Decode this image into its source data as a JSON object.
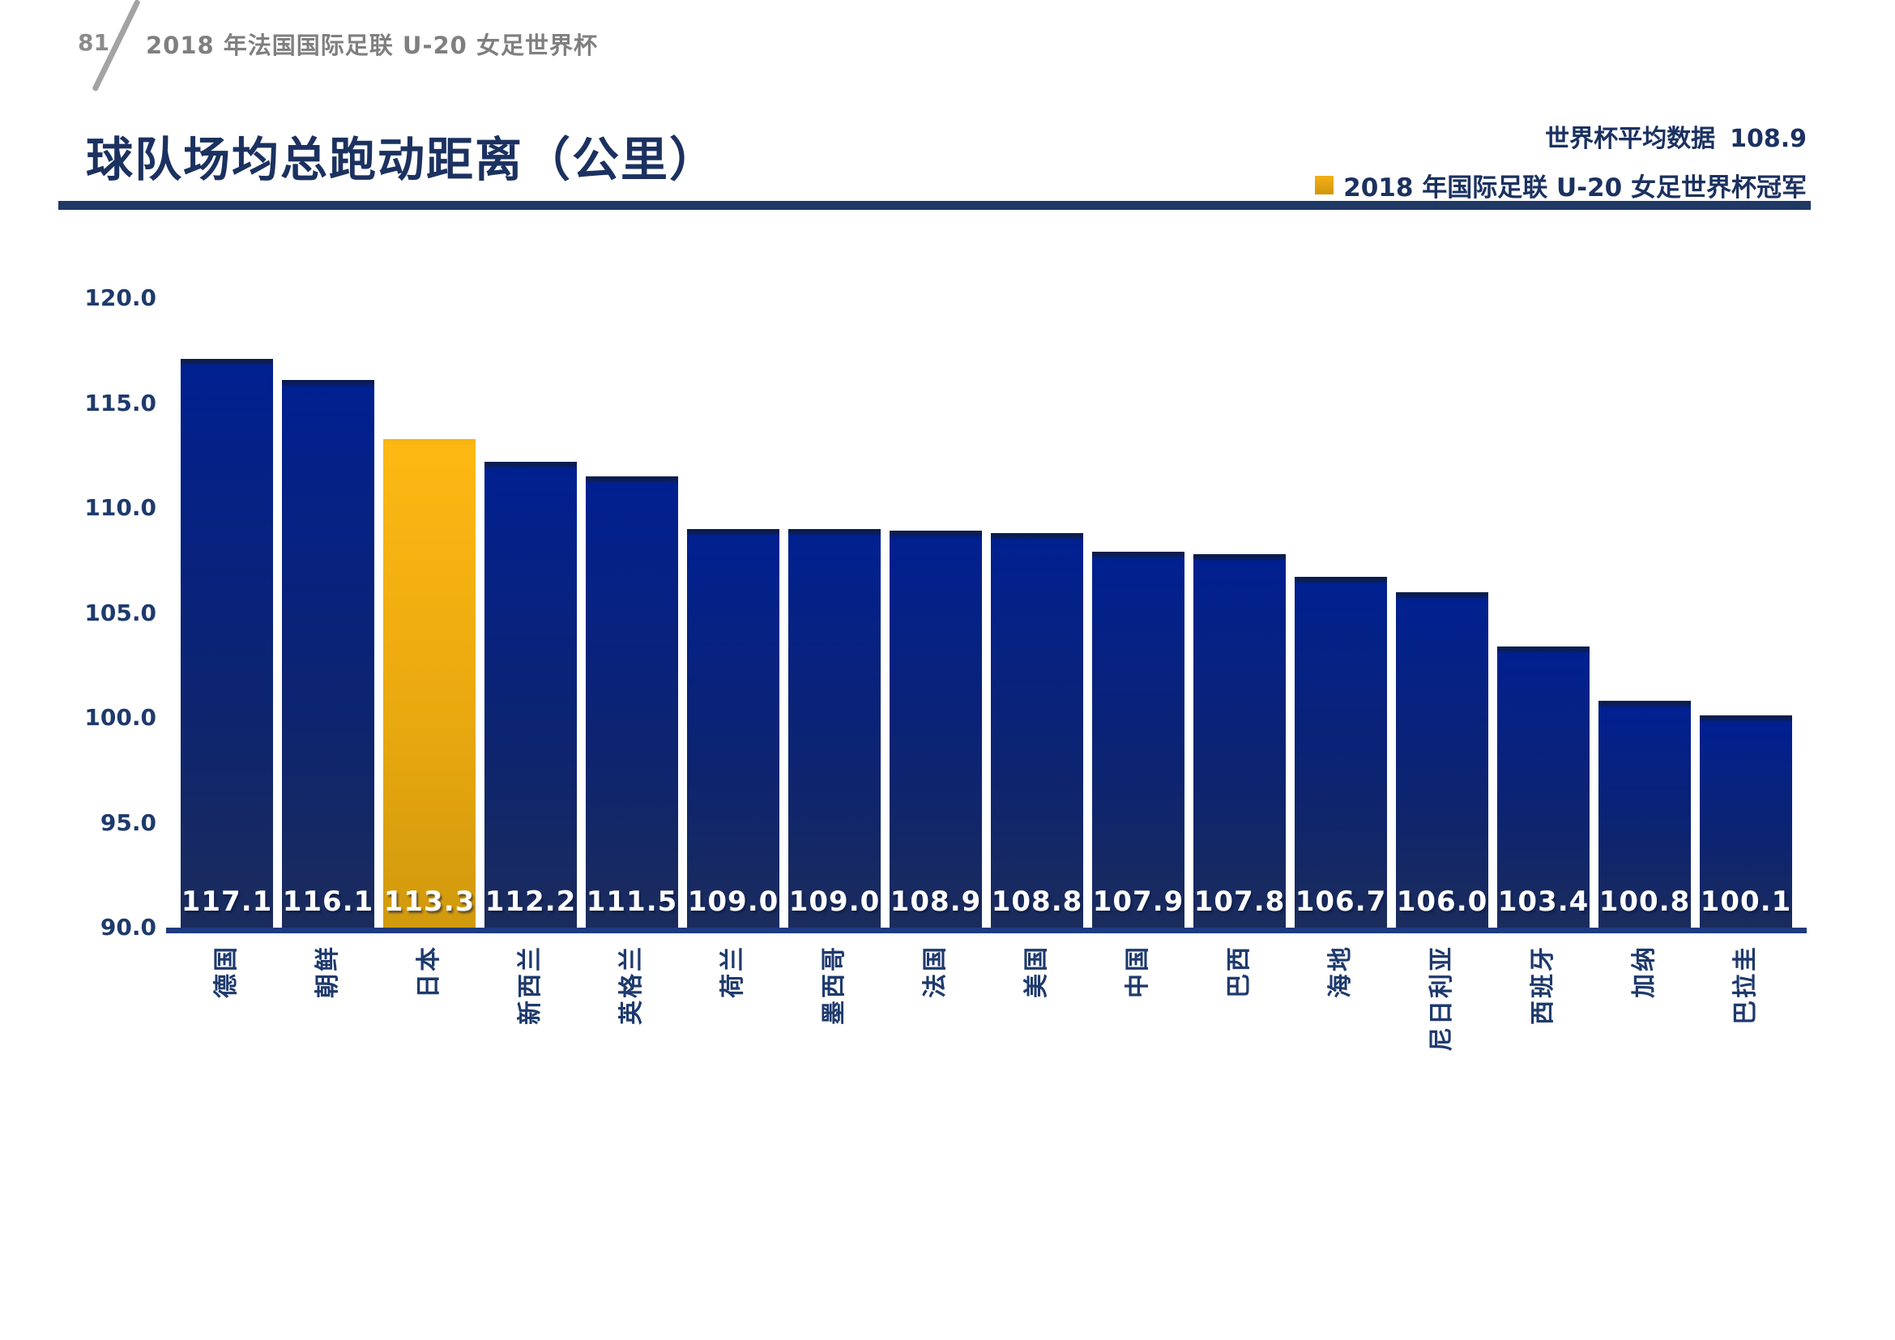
{
  "page": {
    "number": "81",
    "header": "2018 年法国国际足联 U-20 女足世界杯"
  },
  "title": "球队场均总跑动距离（公里）",
  "legend": {
    "average_label": "世界杯平均数据",
    "average_value": "108.9",
    "champion_swatch": "gold-square-icon",
    "champion_label": "2018 年国际足联 U-20 女足世界杯冠军"
  },
  "colors": {
    "navy": "#1f3864",
    "bar_navy_top": "#012090",
    "bar_navy_bottom": "#1b2c5c",
    "bar_gold_top": "#fdb813",
    "bar_gold_bottom": "#d1990d",
    "axis_text": "#1e3a6d",
    "header_gray": "#7f7f7f",
    "value_text": "#ffffff"
  },
  "chart_data": {
    "type": "bar",
    "title": "球队场均总跑动距离（公里）",
    "categories": [
      "德国",
      "朝鲜",
      "日本",
      "新西兰",
      "英格兰",
      "荷兰",
      "墨西哥",
      "法国",
      "美国",
      "中国",
      "巴西",
      "海地",
      "尼日利亚",
      "西班牙",
      "加纳",
      "巴拉圭"
    ],
    "values": [
      117.1,
      116.1,
      113.3,
      112.2,
      111.5,
      109.0,
      109.0,
      108.9,
      108.8,
      107.9,
      107.8,
      106.7,
      106.0,
      103.4,
      100.8,
      100.1
    ],
    "highlight_index": 2,
    "highlight_meaning": "2018 年国际足联 U-20 女足世界杯冠军",
    "world_cup_average": 108.9,
    "xlabel": "",
    "ylabel": "",
    "ylim": [
      90,
      120
    ],
    "ytick_labels": [
      "120.0",
      "115.0",
      "110.0",
      "105.0",
      "100.0",
      "95.0",
      "90.0"
    ],
    "grid": false,
    "legend_position": "top-right"
  }
}
